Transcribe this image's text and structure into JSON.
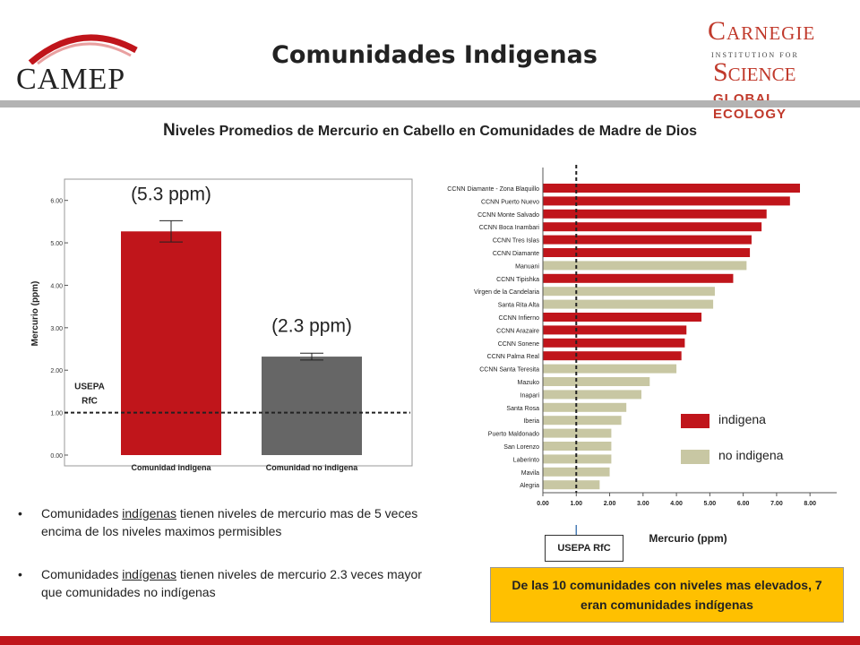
{
  "header": {
    "title": "Comunidades Indigenas",
    "left_logo_text": "CAMEP",
    "right_logo": {
      "line1": "Carnegie",
      "line2": "INSTITUTION FOR",
      "line3": "Science",
      "line4": "GLOBAL ECOLOGY"
    }
  },
  "subtitle": {
    "first": "N",
    "rest": "iveles Promedios de Mercurio en Cabello en Comunidades de Madre de Dios"
  },
  "bullets": [
    {
      "pre": "Comunidades ",
      "u": "indígenas",
      "post": "  tienen niveles  de mercurio mas de 5 veces encima de los niveles maximos permisibles"
    },
    {
      "pre": "Comunidades ",
      "u": "indígenas",
      "post": " tienen niveles  de mercurio  2.3 veces mayor que comunidades no indígenas"
    }
  ],
  "usepa_box": "USEPA RfC",
  "callout": "De las 10 comunidades con niveles mas elevados,  7 eran comunidades indígenas",
  "legend": [
    {
      "label": "indigena",
      "color": "#c0151b"
    },
    {
      "label": "no indigena",
      "color": "#c8c7a3"
    }
  ],
  "colors": {
    "indigena": "#c0151b",
    "no_indigena": "#c8c7a3",
    "no_indigena_bar": "#666666",
    "footer": "#c0151b"
  },
  "chart_data": [
    {
      "type": "bar",
      "categories": [
        "Comunidad indigena",
        "Comunidad no indigena"
      ],
      "values": [
        5.27,
        2.32
      ],
      "error": [
        0.25,
        0.08
      ],
      "bar_labels": [
        "(5.3 ppm)",
        "(2.3 ppm)"
      ],
      "ylabel": "Mercurio (ppm)",
      "ylim": [
        0,
        6.5
      ],
      "yticks": [
        "0.00",
        "1.00",
        "2.00",
        "3.00",
        "4.00",
        "5.00",
        "6.00"
      ],
      "reference_line": {
        "value": 1.0,
        "label": [
          "USEPA",
          "RfC"
        ]
      },
      "colors": [
        "#c0151b",
        "#666666"
      ]
    },
    {
      "type": "bar",
      "orientation": "horizontal",
      "xlabel": "Mercurio (ppm)",
      "xlim": [
        0,
        8.8
      ],
      "xticks": [
        "0.00",
        "1.00",
        "2.00",
        "3.00",
        "4.00",
        "5.00",
        "6.00",
        "7.00",
        "8.00"
      ],
      "reference_line": {
        "value": 1.0
      },
      "categories": [
        "CCNN Diamante - Zona Blaquillo",
        "CCNN Puerto Nuevo",
        "CCNN Monte Salvado",
        "CCNN Boca Inambari",
        "CCNN Tres Islas",
        "CCNN Diamante",
        "Manuani",
        "CCNN Tipishka",
        "Virgen de la Candelaria",
        "Santa Rita Alta",
        "CCNN Infierno",
        "CCNN Arazaire",
        "CCNN Sonene",
        "CCNN Palma Real",
        "CCNN Santa Teresita",
        "Mazuko",
        "Inapari",
        "Santa Rosa",
        "Iberia",
        "Puerto Maldonado",
        "San Lorenzo",
        "Laberinto",
        "Mavila",
        "Alegria"
      ],
      "values": [
        7.7,
        7.4,
        6.7,
        6.55,
        6.25,
        6.2,
        6.1,
        5.7,
        5.15,
        5.1,
        4.75,
        4.3,
        4.25,
        4.15,
        4.0,
        3.2,
        2.95,
        2.5,
        2.35,
        2.05,
        2.05,
        2.05,
        2.0,
        1.7
      ],
      "groups": [
        "indigena",
        "indigena",
        "indigena",
        "indigena",
        "indigena",
        "indigena",
        "no indigena",
        "indigena",
        "no indigena",
        "no indigena",
        "indigena",
        "indigena",
        "indigena",
        "indigena",
        "no indigena",
        "no indigena",
        "no indigena",
        "no indigena",
        "no indigena",
        "no indigena",
        "no indigena",
        "no indigena",
        "no indigena",
        "no indigena"
      ]
    }
  ]
}
